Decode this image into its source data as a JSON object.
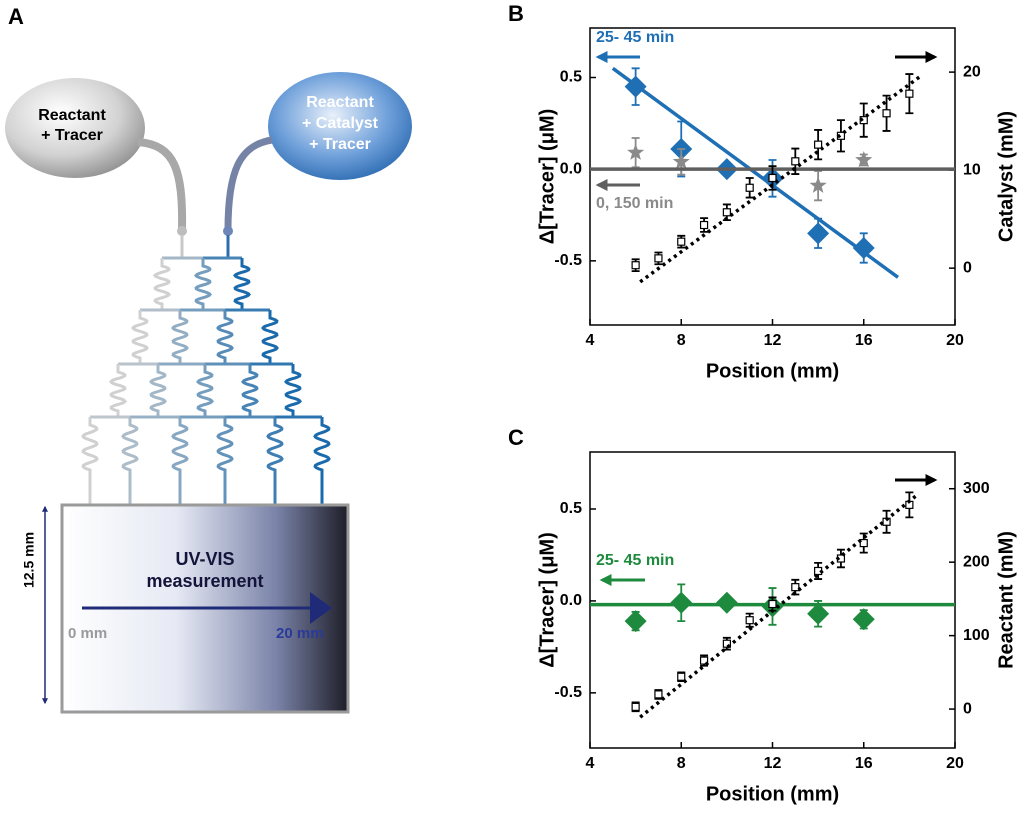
{
  "panel_a": {
    "label": "A",
    "left_reservoir": [
      "Reactant",
      "+ Tracer"
    ],
    "right_reservoir": [
      "Reactant",
      "+ Catalyst",
      "+ Tracer"
    ],
    "height": "12.5 mm",
    "box_title": [
      "UV-VIS",
      "measurement"
    ],
    "start": "0 mm",
    "end": "20 mm"
  },
  "chart_data": [
    {
      "type": "scatter",
      "panel_label": "B",
      "x_label": "Position (mm)",
      "y_label": "Δ[Tracer] (μM)",
      "y2_label": "Catalyst (mM)",
      "xlim": [
        4,
        20
      ],
      "xticks": [
        4,
        8,
        12,
        16,
        20
      ],
      "ylim": [
        -0.85,
        0.77
      ],
      "yticks": [
        -0.5,
        {
          "value": 0,
          "label": "0.0"
        },
        0.5
      ],
      "y2lim": [
        -5.8,
        24.5
      ],
      "y2ticks": [
        0,
        10,
        20
      ],
      "series": [
        {
          "name": "25- 45 min",
          "color": "#1f6fb5",
          "marker": "diamond",
          "x": [
            6,
            8,
            10,
            12,
            14,
            16
          ],
          "values": [
            0.45,
            0.11,
            0.0,
            -0.05,
            -0.35,
            -0.43
          ],
          "errors": [
            0.1,
            0.15,
            0.02,
            0.1,
            0.08,
            0.08
          ]
        },
        {
          "color": "#1f6fb5",
          "marker": "line",
          "x": [
            5,
            17.5
          ],
          "values": [
            0.55,
            -0.59
          ]
        },
        {
          "name": "0, 150 min",
          "color": "#8a8a8a",
          "marker": "star",
          "x": [
            6,
            8,
            14,
            16
          ],
          "values": [
            0.09,
            0.04,
            -0.09,
            0.05
          ],
          "errors": [
            0.08,
            0.07,
            0.08,
            0.03
          ]
        },
        {
          "color": "#5f5f5f",
          "marker": "line",
          "x": [
            4,
            20
          ],
          "values": [
            0,
            0
          ]
        },
        {
          "color": "#000000",
          "marker": "square",
          "axis": "y2",
          "x": [
            6,
            7,
            8,
            9,
            10,
            11,
            12,
            13,
            14,
            15,
            16,
            17,
            18
          ],
          "values": [
            0.3,
            1.0,
            2.7,
            4.4,
            5.7,
            8.2,
            9.2,
            10.9,
            12.6,
            13.5,
            15.1,
            15.8,
            17.8
          ],
          "errors": [
            0.6,
            0.6,
            0.6,
            0.7,
            0.8,
            1.0,
            1.2,
            1.3,
            1.5,
            1.6,
            1.7,
            1.8,
            2.0
          ]
        },
        {
          "color": "#000000",
          "marker": "dotted",
          "axis": "y2",
          "x": [
            6.2,
            18.5
          ],
          "values": [
            -1.4,
            19.6
          ]
        }
      ]
    },
    {
      "type": "scatter",
      "panel_label": "C",
      "x_label": "Position (mm)",
      "y_label": "Δ[Tracer] (μM)",
      "y2_label": "Reactant (mM)",
      "xlim": [
        4,
        20
      ],
      "xticks": [
        4,
        8,
        12,
        16,
        20
      ],
      "ylim": [
        -0.8,
        0.81
      ],
      "yticks": [
        -0.5,
        {
          "value": 0,
          "label": "0.0"
        },
        0.5
      ],
      "y2lim": [
        -53,
        350
      ],
      "y2ticks": [
        0,
        100,
        200,
        300
      ],
      "series": [
        {
          "name": "25- 45 min",
          "color": "#1e8a3e",
          "marker": "diamond",
          "x": [
            6,
            8,
            10,
            12,
            14,
            16
          ],
          "values": [
            -0.11,
            -0.01,
            -0.01,
            -0.03,
            -0.07,
            -0.1
          ],
          "errors": [
            0.05,
            0.1,
            0.02,
            0.1,
            0.07,
            0.05
          ]
        },
        {
          "color": "#1e8a3e",
          "marker": "line",
          "x": [
            4,
            20
          ],
          "values": [
            -0.02,
            -0.02
          ]
        },
        {
          "color": "#000000",
          "marker": "square",
          "axis": "y2",
          "x": [
            6,
            7,
            8,
            9,
            10,
            11,
            12,
            13,
            14,
            15,
            16,
            17,
            18
          ],
          "values": [
            3,
            20,
            44,
            66,
            89,
            121,
            143,
            166,
            188,
            205,
            226,
            255,
            278
          ],
          "errors": [
            6,
            6,
            6,
            7,
            8,
            9,
            9,
            10,
            11,
            12,
            13,
            15,
            17
          ]
        },
        {
          "color": "#000000",
          "marker": "dotted",
          "axis": "y2",
          "x": [
            6.2,
            18.4
          ],
          "values": [
            -11,
            293
          ]
        }
      ]
    }
  ]
}
